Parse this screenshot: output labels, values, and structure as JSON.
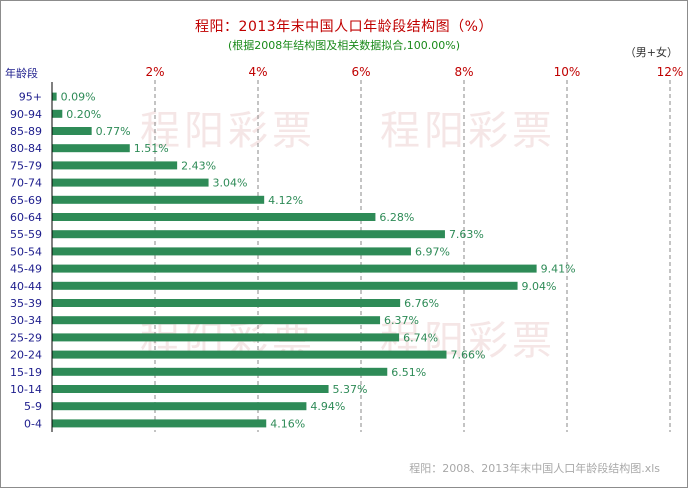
{
  "chart_data": {
    "type": "bar",
    "orientation": "horizontal",
    "title": "程阳：2013年末中国人口年龄段结构图（%）",
    "subtitle": "(根据2008年结构图及相关数据拟合,100.00%)",
    "unit_label": "（男+女）",
    "ylabel": "年龄段",
    "xlim": [
      0,
      12
    ],
    "x_ticks": [
      "2%",
      "4%",
      "6%",
      "8%",
      "10%",
      "12%"
    ],
    "x_tick_values": [
      2,
      4,
      6,
      8,
      10,
      12
    ],
    "grid": "vertical dashed",
    "bar_color": "#2e8b57",
    "categories": [
      "95+",
      "90-94",
      "85-89",
      "80-84",
      "75-79",
      "70-74",
      "65-69",
      "60-64",
      "55-59",
      "50-54",
      "45-49",
      "40-44",
      "35-39",
      "30-34",
      "25-29",
      "20-24",
      "15-19",
      "10-14",
      "5-9",
      "0-4"
    ],
    "values": [
      0.09,
      0.2,
      0.77,
      1.51,
      2.43,
      3.04,
      4.12,
      6.28,
      7.63,
      6.97,
      9.41,
      9.04,
      6.76,
      6.37,
      6.74,
      7.66,
      6.51,
      5.37,
      4.94,
      4.16
    ],
    "data_labels": [
      "0.09%",
      "0.20%",
      "0.77%",
      "1.51%",
      "2.43%",
      "3.04%",
      "4.12%",
      "6.28%",
      "7.63%",
      "6.97%",
      "9.41%",
      "9.04%",
      "6.76%",
      "6.37%",
      "6.74%",
      "7.66%",
      "6.51%",
      "5.37%",
      "4.94%",
      "4.16%"
    ]
  },
  "watermark": "程阳彩票",
  "footer": "程阳：2008、2013年末中国人口年龄段结构图.xls"
}
